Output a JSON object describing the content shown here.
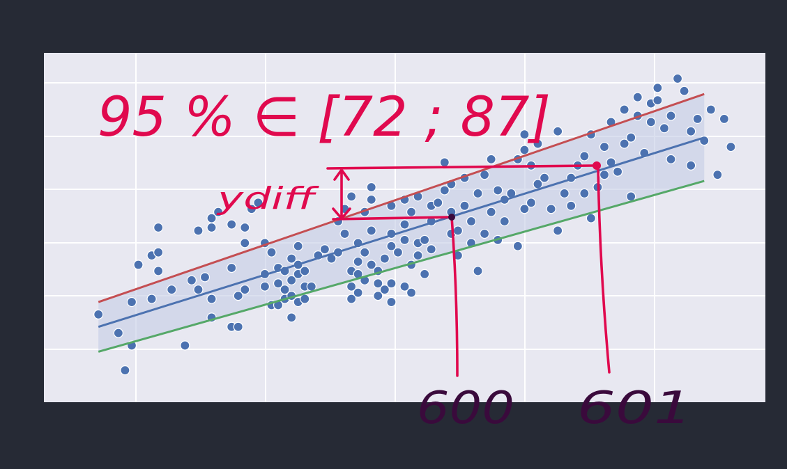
{
  "annotations": {
    "interval_text": "95 % ∈ [72 ; 87]",
    "ydiff_label": "ydiff",
    "x_mark_1": "600",
    "x_mark_2": "601"
  },
  "colors": {
    "background": "#262a35",
    "plot_bg": "#e8e8f1",
    "grid": "#ffffff",
    "points": "#4c72b0",
    "fit_line": "#4c72b0",
    "upper_line": "#c44e52",
    "lower_line": "#55a868",
    "band": "#c8d0e6",
    "ink_red": "#e0094e",
    "ink_dark": "#3a0a3c"
  },
  "chart_data": {
    "type": "scatter",
    "title": "",
    "xlabel": "",
    "ylabel": "",
    "grid": true,
    "xlim": [
      0,
      100
    ],
    "ylim": [
      0,
      100
    ],
    "regression": {
      "fit": {
        "x": [
          4,
          95
        ],
        "y": [
          18,
          79
        ]
      },
      "upper": {
        "x": [
          4,
          95
        ],
        "y": [
          26,
          93
        ]
      },
      "lower": {
        "x": [
          4,
          95
        ],
        "y": [
          10,
          65
        ]
      }
    },
    "points": [
      [
        4,
        22
      ],
      [
        7,
        16
      ],
      [
        8,
        4
      ],
      [
        9,
        12
      ],
      [
        9,
        26
      ],
      [
        10,
        38
      ],
      [
        12,
        27
      ],
      [
        12,
        41
      ],
      [
        13,
        36
      ],
      [
        13,
        42
      ],
      [
        13,
        50
      ],
      [
        15,
        30
      ],
      [
        17,
        12
      ],
      [
        18,
        33
      ],
      [
        19,
        49
      ],
      [
        19,
        30
      ],
      [
        20,
        34
      ],
      [
        21,
        21
      ],
      [
        21,
        27
      ],
      [
        21,
        50
      ],
      [
        21,
        53
      ],
      [
        22,
        55
      ],
      [
        24,
        51
      ],
      [
        24,
        18
      ],
      [
        24,
        37
      ],
      [
        25,
        18
      ],
      [
        25,
        28
      ],
      [
        26,
        30
      ],
      [
        26,
        45
      ],
      [
        26,
        50
      ],
      [
        27,
        56
      ],
      [
        28,
        58
      ],
      [
        29,
        45
      ],
      [
        29,
        35
      ],
      [
        29,
        31
      ],
      [
        30,
        42
      ],
      [
        30,
        25
      ],
      [
        31,
        32
      ],
      [
        31,
        25
      ],
      [
        31,
        37
      ],
      [
        32,
        30
      ],
      [
        32,
        27
      ],
      [
        32,
        36
      ],
      [
        33,
        21
      ],
      [
        33,
        28
      ],
      [
        33,
        40
      ],
      [
        33,
        33
      ],
      [
        34,
        26
      ],
      [
        34,
        35
      ],
      [
        34,
        38
      ],
      [
        34,
        44
      ],
      [
        35,
        27
      ],
      [
        35,
        31
      ],
      [
        35,
        36
      ],
      [
        36,
        31
      ],
      [
        37,
        41
      ],
      [
        38,
        43
      ],
      [
        39,
        40
      ],
      [
        40,
        42
      ],
      [
        40,
        52
      ],
      [
        41,
        48
      ],
      [
        41,
        56
      ],
      [
        42,
        60
      ],
      [
        42,
        36
      ],
      [
        42,
        31
      ],
      [
        42,
        27
      ],
      [
        43,
        45
      ],
      [
        43,
        39
      ],
      [
        43,
        35
      ],
      [
        43,
        29
      ],
      [
        44,
        33
      ],
      [
        44,
        42
      ],
      [
        44,
        55
      ],
      [
        45,
        49
      ],
      [
        45,
        59
      ],
      [
        45,
        63
      ],
      [
        45,
        38
      ],
      [
        46,
        36
      ],
      [
        46,
        28
      ],
      [
        46,
        32
      ],
      [
        47,
        40
      ],
      [
        47,
        30
      ],
      [
        48,
        48
      ],
      [
        48,
        26
      ],
      [
        48,
        32
      ],
      [
        48,
        44
      ],
      [
        48,
        57
      ],
      [
        49,
        42
      ],
      [
        50,
        51
      ],
      [
        50,
        46
      ],
      [
        50,
        59
      ],
      [
        50,
        31
      ],
      [
        51,
        38
      ],
      [
        51,
        29
      ],
      [
        51,
        55
      ],
      [
        52,
        45
      ],
      [
        52,
        41
      ],
      [
        52,
        60
      ],
      [
        53,
        35
      ],
      [
        53,
        46
      ],
      [
        54,
        43
      ],
      [
        54,
        52
      ],
      [
        54,
        57
      ],
      [
        55,
        58
      ],
      [
        56,
        62
      ],
      [
        56,
        71
      ],
      [
        57,
        48
      ],
      [
        57,
        55
      ],
      [
        57,
        64
      ],
      [
        58,
        41
      ],
      [
        58,
        49
      ],
      [
        59,
        57
      ],
      [
        59,
        66
      ],
      [
        60,
        45
      ],
      [
        60,
        52
      ],
      [
        61,
        61
      ],
      [
        61,
        36
      ],
      [
        62,
        48
      ],
      [
        62,
        67
      ],
      [
        63,
        55
      ],
      [
        63,
        72
      ],
      [
        64,
        62
      ],
      [
        64,
        46
      ],
      [
        65,
        59
      ],
      [
        65,
        52
      ],
      [
        66,
        61
      ],
      [
        67,
        72
      ],
      [
        67,
        44
      ],
      [
        68,
        56
      ],
      [
        68,
        75
      ],
      [
        68,
        80
      ],
      [
        69,
        70
      ],
      [
        69,
        58
      ],
      [
        70,
        77
      ],
      [
        70,
        64
      ],
      [
        71,
        66
      ],
      [
        72,
        56
      ],
      [
        73,
        81
      ],
      [
        73,
        49
      ],
      [
        74,
        61
      ],
      [
        75,
        57
      ],
      [
        75,
        66
      ],
      [
        76,
        70
      ],
      [
        77,
        61
      ],
      [
        77,
        73
      ],
      [
        78,
        80
      ],
      [
        78,
        53
      ],
      [
        79,
        63
      ],
      [
        80,
        76
      ],
      [
        80,
        67
      ],
      [
        81,
        84
      ],
      [
        81,
        71
      ],
      [
        82,
        68
      ],
      [
        83,
        77
      ],
      [
        83,
        88
      ],
      [
        84,
        79
      ],
      [
        84,
        60
      ],
      [
        85,
        92
      ],
      [
        85,
        86
      ],
      [
        86,
        74
      ],
      [
        87,
        90
      ],
      [
        87,
        84
      ],
      [
        88,
        91
      ],
      [
        88,
        95
      ],
      [
        89,
        82
      ],
      [
        90,
        72
      ],
      [
        90,
        86
      ],
      [
        91,
        98
      ],
      [
        92,
        94
      ],
      [
        93,
        81
      ],
      [
        93,
        70
      ],
      [
        94,
        85
      ],
      [
        95,
        78
      ],
      [
        96,
        88
      ],
      [
        97,
        67
      ],
      [
        98,
        85
      ],
      [
        99,
        76
      ]
    ]
  }
}
